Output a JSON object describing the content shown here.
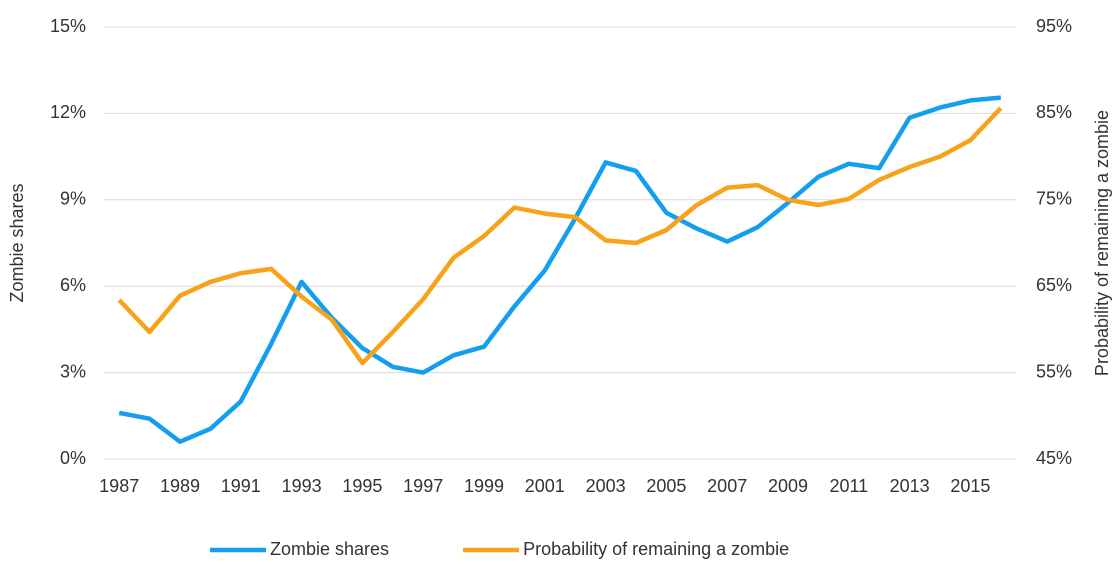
{
  "chart_data": {
    "type": "line",
    "categories": [
      "1987",
      null,
      "1989",
      null,
      "1991",
      null,
      "1993",
      null,
      "1995",
      null,
      "1997",
      null,
      "1999",
      null,
      "2001",
      null,
      "2003",
      null,
      "2005",
      null,
      "2007",
      null,
      "2009",
      null,
      "2011",
      null,
      "2013",
      null,
      "2015",
      null
    ],
    "series": [
      {
        "name": "Zombie shares",
        "color": "#149ef0",
        "values": [
          1.6,
          1.4,
          0.6,
          1.05,
          2.0,
          4.0,
          6.15,
          4.9,
          3.85,
          3.2,
          3.0,
          3.6,
          3.9,
          5.3,
          6.55,
          8.35,
          10.3,
          10.0,
          8.55,
          8.0,
          7.55,
          8.05,
          8.9,
          9.8,
          10.25,
          10.1,
          11.85,
          12.2,
          12.45,
          12.55
        ]
      },
      {
        "name": "Probability of remaining a zombie",
        "color": "#f8a21a",
        "axis": "y2",
        "values": [
          63.4,
          59.7,
          63.9,
          65.5,
          66.5,
          67.0,
          63.8,
          61.1,
          56.1,
          59.7,
          63.5,
          68.3,
          70.8,
          74.1,
          73.4,
          73.0,
          70.3,
          70.0,
          71.5,
          74.4,
          76.4,
          76.7,
          75.0,
          74.4,
          75.1,
          77.3,
          78.8,
          80.0,
          81.9,
          85.6
        ]
      }
    ],
    "ylabel": "Zombie shares",
    "y2label": "Probability of remaining a zombie",
    "ylim": [
      0,
      15
    ],
    "yticks": [
      {
        "value": 0,
        "label": "0%"
      },
      {
        "value": 3,
        "label": "3%"
      },
      {
        "value": 6,
        "label": "6%"
      },
      {
        "value": 9,
        "label": "9%"
      },
      {
        "value": 12,
        "label": "12%"
      },
      {
        "value": 15,
        "label": "15%"
      }
    ],
    "y2lim": [
      45,
      95
    ],
    "y2ticks": [
      {
        "value": 45,
        "label": "45%"
      },
      {
        "value": 55,
        "label": "55%"
      },
      {
        "value": 65,
        "label": "65%"
      },
      {
        "value": 75,
        "label": "75%"
      },
      {
        "value": 85,
        "label": "85%"
      },
      {
        "value": 95,
        "label": "95%"
      }
    ],
    "grid": true,
    "legend": "bottom"
  }
}
